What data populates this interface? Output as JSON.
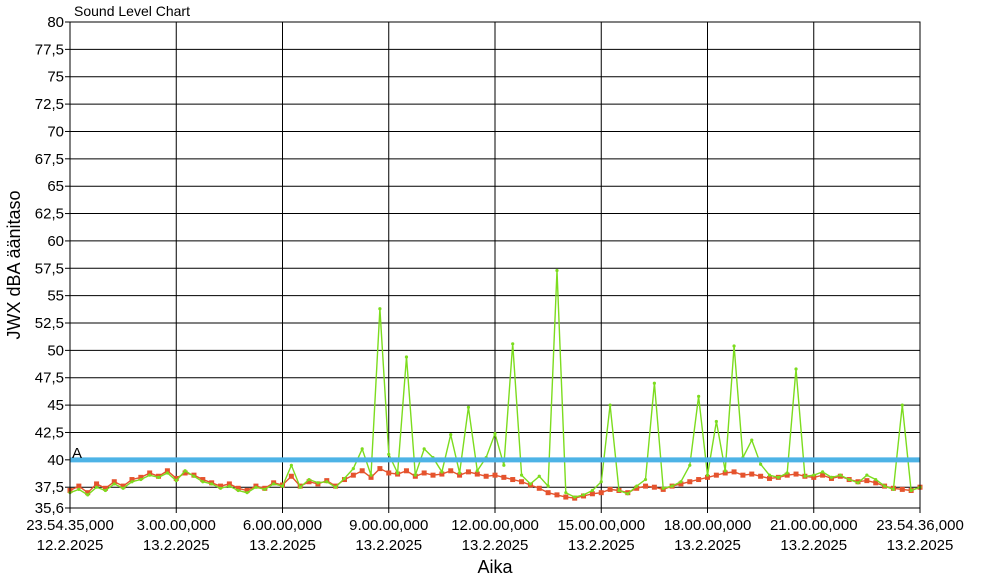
{
  "chart_data": {
    "type": "line",
    "title": "Sound Level Chart",
    "xlabel": "Aika",
    "ylabel": "JWX dBA äänitaso",
    "ylim": [
      35.6,
      80
    ],
    "yticks": [
      "35,6",
      "37,5",
      "40",
      "42,5",
      "45",
      "47,5",
      "50",
      "52,5",
      "55",
      "57,5",
      "60",
      "62,5",
      "65",
      "67,5",
      "70",
      "72,5",
      "75",
      "77,5",
      "80"
    ],
    "xticks": [
      {
        "time": "23.54.35,000",
        "date": "12.2.2025"
      },
      {
        "time": "3.00.00,000",
        "date": "13.2.2025"
      },
      {
        "time": "6.00.00,000",
        "date": "13.2.2025"
      },
      {
        "time": "9.00.00,000",
        "date": "13.2.2025"
      },
      {
        "time": "12.00.00,000",
        "date": "13.2.2025"
      },
      {
        "time": "15.00.00,000",
        "date": "13.2.2025"
      },
      {
        "time": "18.00.00,000",
        "date": "13.2.2025"
      },
      {
        "time": "21.00.00,000",
        "date": "13.2.2025"
      },
      {
        "time": "23.54.36,000",
        "date": "13.2.2025"
      }
    ],
    "grid": true,
    "threshold": {
      "label": "A",
      "value": 40,
      "color": "#4db3e6"
    },
    "series": [
      {
        "color": "#7cdc1e",
        "hours": [
          0.0,
          0.25,
          0.5,
          0.75,
          1.0,
          1.25,
          1.5,
          1.75,
          2.0,
          2.25,
          2.5,
          2.75,
          3.0,
          3.25,
          3.5,
          3.75,
          4.0,
          4.25,
          4.5,
          4.75,
          5.0,
          5.25,
          5.5,
          5.75,
          6.0,
          6.25,
          6.5,
          6.75,
          7.0,
          7.25,
          7.5,
          7.75,
          8.0,
          8.25,
          8.5,
          8.75,
          9.0,
          9.25,
          9.5,
          9.75,
          10.0,
          10.25,
          10.5,
          10.75,
          11.0,
          11.25,
          11.5,
          11.75,
          12.0,
          12.25,
          12.5,
          12.75,
          13.0,
          13.25,
          13.5,
          13.75,
          14.0,
          14.25,
          14.5,
          14.75,
          15.0,
          15.25,
          15.5,
          15.75,
          16.0,
          16.25,
          16.5,
          16.75,
          17.0,
          17.25,
          17.5,
          17.75,
          18.0,
          18.25,
          18.5,
          18.75,
          19.0,
          19.25,
          19.5,
          19.75,
          20.0,
          20.25,
          20.5,
          20.75,
          21.0,
          21.25,
          21.5,
          21.75,
          22.0,
          22.25,
          22.5,
          22.75,
          23.0,
          23.25,
          23.5,
          23.75,
          24.0
        ],
        "values": [
          37.0,
          37.3,
          36.8,
          37.5,
          37.2,
          37.8,
          37.4,
          38.0,
          38.2,
          38.6,
          38.4,
          38.8,
          38.1,
          39.0,
          38.5,
          38.0,
          37.8,
          37.4,
          37.6,
          37.2,
          37.0,
          37.5,
          37.3,
          37.8,
          37.6,
          39.5,
          37.5,
          38.2,
          37.9,
          38.0,
          37.5,
          38.3,
          39.2,
          41.0,
          38.6,
          53.8,
          40.5,
          38.8,
          49.4,
          38.6,
          41.0,
          40.2,
          38.9,
          42.3,
          38.8,
          44.8,
          39.0,
          40.2,
          42.4,
          39.5,
          50.6,
          38.6,
          37.8,
          38.5,
          37.6,
          57.3,
          37.0,
          36.6,
          36.8,
          37.2,
          38.0,
          45.0,
          37.2,
          36.9,
          37.6,
          38.2,
          47.0,
          37.4,
          37.6,
          38.0,
          39.5,
          45.8,
          38.6,
          43.5,
          39.0,
          50.4,
          40.2,
          41.8,
          39.6,
          38.6,
          38.4,
          38.8,
          48.3,
          38.5,
          38.6,
          38.9,
          38.4,
          38.6,
          38.2,
          37.9,
          38.6,
          38.2,
          37.6,
          37.3,
          45.0,
          37.2,
          37.5
        ]
      },
      {
        "color": "#e5532d",
        "hours": [
          0.0,
          0.25,
          0.5,
          0.75,
          1.0,
          1.25,
          1.5,
          1.75,
          2.0,
          2.25,
          2.5,
          2.75,
          3.0,
          3.25,
          3.5,
          3.75,
          4.0,
          4.25,
          4.5,
          4.75,
          5.0,
          5.25,
          5.5,
          5.75,
          6.0,
          6.25,
          6.5,
          6.75,
          7.0,
          7.25,
          7.5,
          7.75,
          8.0,
          8.25,
          8.5,
          8.75,
          9.0,
          9.25,
          9.5,
          9.75,
          10.0,
          10.25,
          10.5,
          10.75,
          11.0,
          11.25,
          11.5,
          11.75,
          12.0,
          12.25,
          12.5,
          12.75,
          13.0,
          13.25,
          13.5,
          13.75,
          14.0,
          14.25,
          14.5,
          14.75,
          15.0,
          15.25,
          15.5,
          15.75,
          16.0,
          16.25,
          16.5,
          16.75,
          17.0,
          17.25,
          17.5,
          17.75,
          18.0,
          18.25,
          18.5,
          18.75,
          19.0,
          19.25,
          19.5,
          19.75,
          20.0,
          20.25,
          20.5,
          20.75,
          21.0,
          21.25,
          21.5,
          21.75,
          22.0,
          22.25,
          22.5,
          22.75,
          23.0,
          23.25,
          23.5,
          23.75,
          24.0
        ],
        "values": [
          37.2,
          37.6,
          37.0,
          37.8,
          37.4,
          38.0,
          37.6,
          38.2,
          38.4,
          38.8,
          38.5,
          39.0,
          38.3,
          38.8,
          38.6,
          38.2,
          37.9,
          37.6,
          37.8,
          37.4,
          37.2,
          37.6,
          37.4,
          37.9,
          37.7,
          38.5,
          37.6,
          38.0,
          37.8,
          38.1,
          37.6,
          38.2,
          38.6,
          39.0,
          38.4,
          39.2,
          38.8,
          38.7,
          39.0,
          38.5,
          38.8,
          38.6,
          38.7,
          39.0,
          38.6,
          38.9,
          38.7,
          38.5,
          38.6,
          38.4,
          38.2,
          38.0,
          37.7,
          37.4,
          37.0,
          36.8,
          36.6,
          36.5,
          36.7,
          36.9,
          37.0,
          37.3,
          37.2,
          37.0,
          37.4,
          37.6,
          37.5,
          37.3,
          37.6,
          37.8,
          38.0,
          38.2,
          38.4,
          38.6,
          38.8,
          38.9,
          38.6,
          38.7,
          38.5,
          38.3,
          38.4,
          38.6,
          38.7,
          38.5,
          38.4,
          38.6,
          38.3,
          38.5,
          38.2,
          38.0,
          38.1,
          37.9,
          37.6,
          37.4,
          37.3,
          37.2,
          37.5
        ]
      }
    ]
  }
}
